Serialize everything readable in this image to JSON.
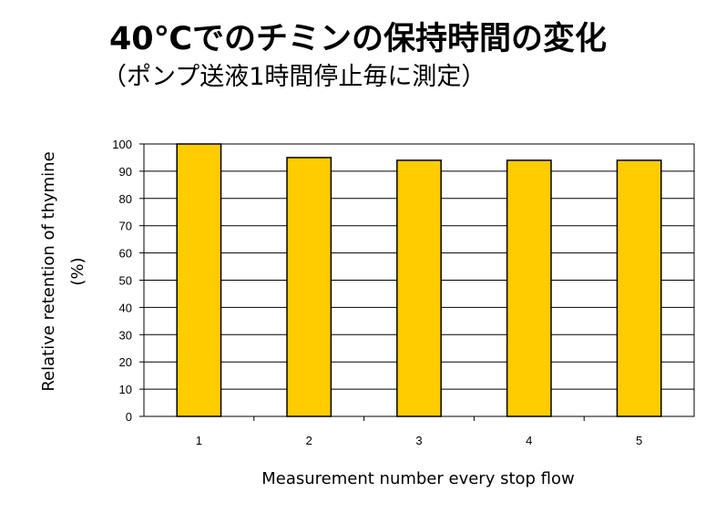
{
  "chart_data": {
    "type": "bar",
    "title": "40℃でのチミンの保持時間の変化",
    "subtitle": "（ポンプ送液1時間停止毎に測定）",
    "categories": [
      "1",
      "2",
      "3",
      "4",
      "5"
    ],
    "values": [
      100,
      95,
      94,
      94,
      94
    ],
    "xlabel": "Measurement number every stop flow",
    "ylabel_line1": "Relative retention of thymine",
    "ylabel_line2": "(%)",
    "ylim": [
      0,
      100
    ],
    "yticks": [
      "0",
      "10",
      "20",
      "30",
      "40",
      "50",
      "60",
      "70",
      "80",
      "90",
      "100"
    ],
    "grid": true,
    "legend": "none",
    "bar_color": "#FFCC00",
    "bar_outline": "#000000"
  }
}
